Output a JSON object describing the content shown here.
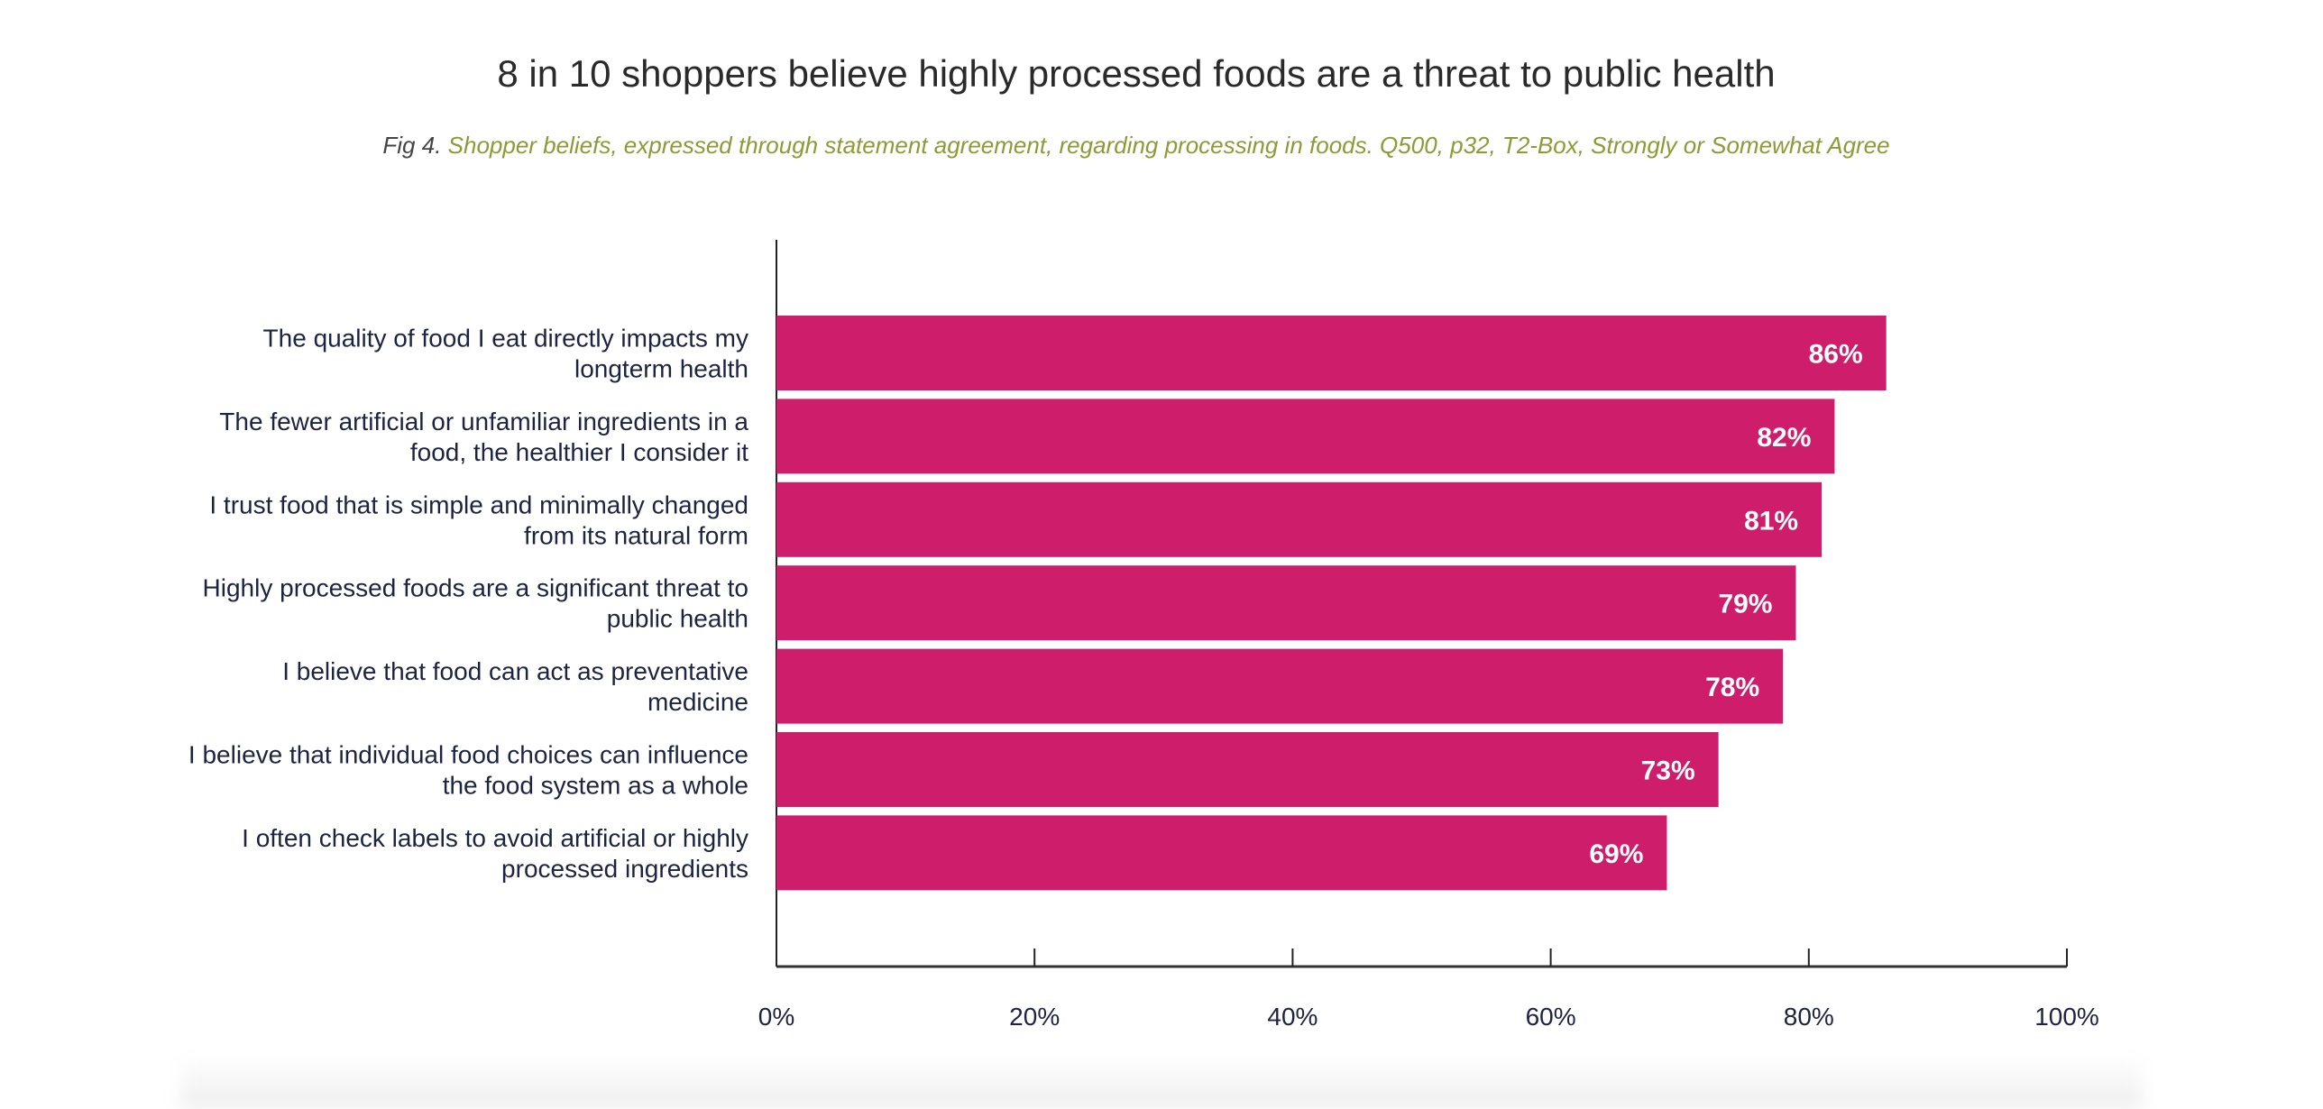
{
  "chart_data": {
    "type": "bar",
    "orientation": "horizontal",
    "title": "8 in 10 shoppers believe highly processed foods are a threat to public health",
    "subtitle_prefix": "Fig 4.",
    "subtitle": "Shopper beliefs, expressed through statement agreement, regarding processing in foods. Q500, p32, T2-Box, Strongly or Somewhat Agree",
    "categories": [
      [
        "The quality of food I eat directly impacts my",
        "longterm health"
      ],
      [
        "The fewer artificial or unfamiliar ingredients in a",
        "food, the healthier I consider it"
      ],
      [
        "I trust food that is simple and minimally changed",
        "from its natural form"
      ],
      [
        "Highly processed foods are a significant threat to",
        "public health"
      ],
      [
        "I believe that food can act as preventative",
        "medicine"
      ],
      [
        "I believe that individual food choices can influence",
        "the food system as a whole"
      ],
      [
        "I often check labels to avoid artificial or highly",
        "processed ingredients"
      ]
    ],
    "values": [
      86,
      82,
      81,
      79,
      78,
      73,
      69
    ],
    "value_labels": [
      "86%",
      "82%",
      "81%",
      "79%",
      "78%",
      "73%",
      "69%"
    ],
    "xlim": [
      0,
      100
    ],
    "xticks": [
      0,
      20,
      40,
      60,
      80,
      100
    ],
    "xtick_labels": [
      "0%",
      "20%",
      "40%",
      "60%",
      "80%",
      "100%"
    ],
    "xlabel": "",
    "ylabel": "",
    "grid": false,
    "bar_color": "#CE1E6B"
  }
}
